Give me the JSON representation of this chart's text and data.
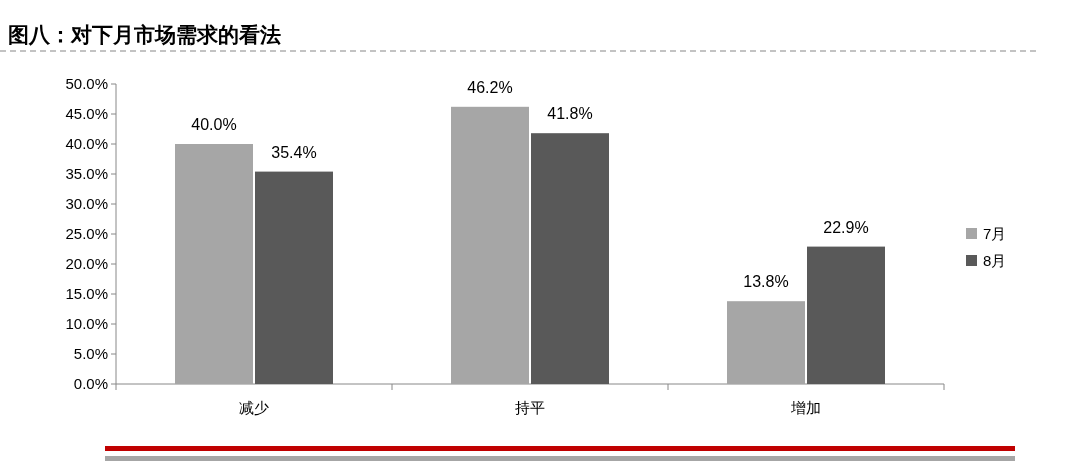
{
  "chart_data": {
    "type": "bar",
    "title": "图八：对下月市场需求的看法",
    "categories": [
      "减少",
      "持平",
      "增加"
    ],
    "series": [
      {
        "name": "7月",
        "color": "#a6a6a6",
        "values": [
          40.0,
          46.2,
          13.8
        ],
        "value_labels": [
          "40.0%",
          "46.2%",
          "13.8%"
        ]
      },
      {
        "name": "8月",
        "color": "#595959",
        "values": [
          35.4,
          41.8,
          22.9
        ],
        "value_labels": [
          "35.4%",
          "41.8%",
          "22.9%"
        ]
      }
    ],
    "ylim": [
      0,
      50
    ],
    "yticks": [
      {
        "value": 0,
        "label": "0.0%"
      },
      {
        "value": 5,
        "label": "5.0%"
      },
      {
        "value": 10,
        "label": "10.0%"
      },
      {
        "value": 15,
        "label": "15.0%"
      },
      {
        "value": 20,
        "label": "20.0%"
      },
      {
        "value": 25,
        "label": "25.0%"
      },
      {
        "value": 30,
        "label": "30.0%"
      },
      {
        "value": 35,
        "label": "35.0%"
      },
      {
        "value": 40,
        "label": "40.0%"
      },
      {
        "value": 45,
        "label": "45.0%"
      },
      {
        "value": 50,
        "label": "50.0%"
      }
    ],
    "grid": false,
    "legend": "right"
  }
}
